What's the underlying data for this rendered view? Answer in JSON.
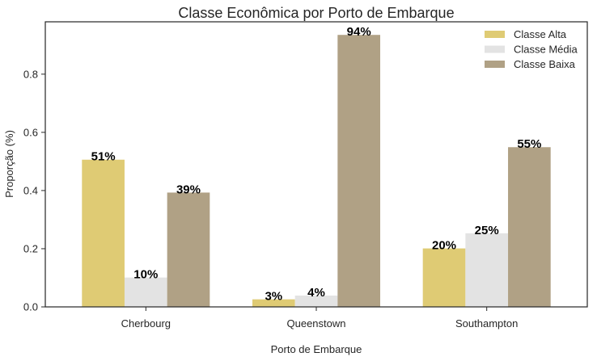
{
  "chart_data": {
    "type": "bar",
    "title": "Classe Econômica por Porto de Embarque",
    "xlabel": "Porto de Embarque",
    "ylabel": "Proporção (%)",
    "categories": [
      "Cherbourg",
      "Queenstown",
      "Southampton"
    ],
    "series": [
      {
        "name": "Classe Alta",
        "values": [
          0.506,
          0.026,
          0.201
        ],
        "labels": [
          "51%",
          "3%",
          "20%"
        ],
        "color": "#dfcb74"
      },
      {
        "name": "Classe Média",
        "values": [
          0.101,
          0.039,
          0.253
        ],
        "labels": [
          "10%",
          "4%",
          "25%"
        ],
        "color": "#e3e3e3"
      },
      {
        "name": "Classe Baixa",
        "values": [
          0.393,
          0.935,
          0.549
        ],
        "labels": [
          "39%",
          "94%",
          "55%"
        ],
        "color": "#b0a185"
      }
    ],
    "ylim": [
      0,
      0.98
    ],
    "yticks": [
      0.0,
      0.2,
      0.4,
      0.6,
      0.8
    ],
    "ytick_labels": [
      "0.0",
      "0.2",
      "0.4",
      "0.6",
      "0.8"
    ],
    "grid": false,
    "legend_position": "top-right"
  }
}
